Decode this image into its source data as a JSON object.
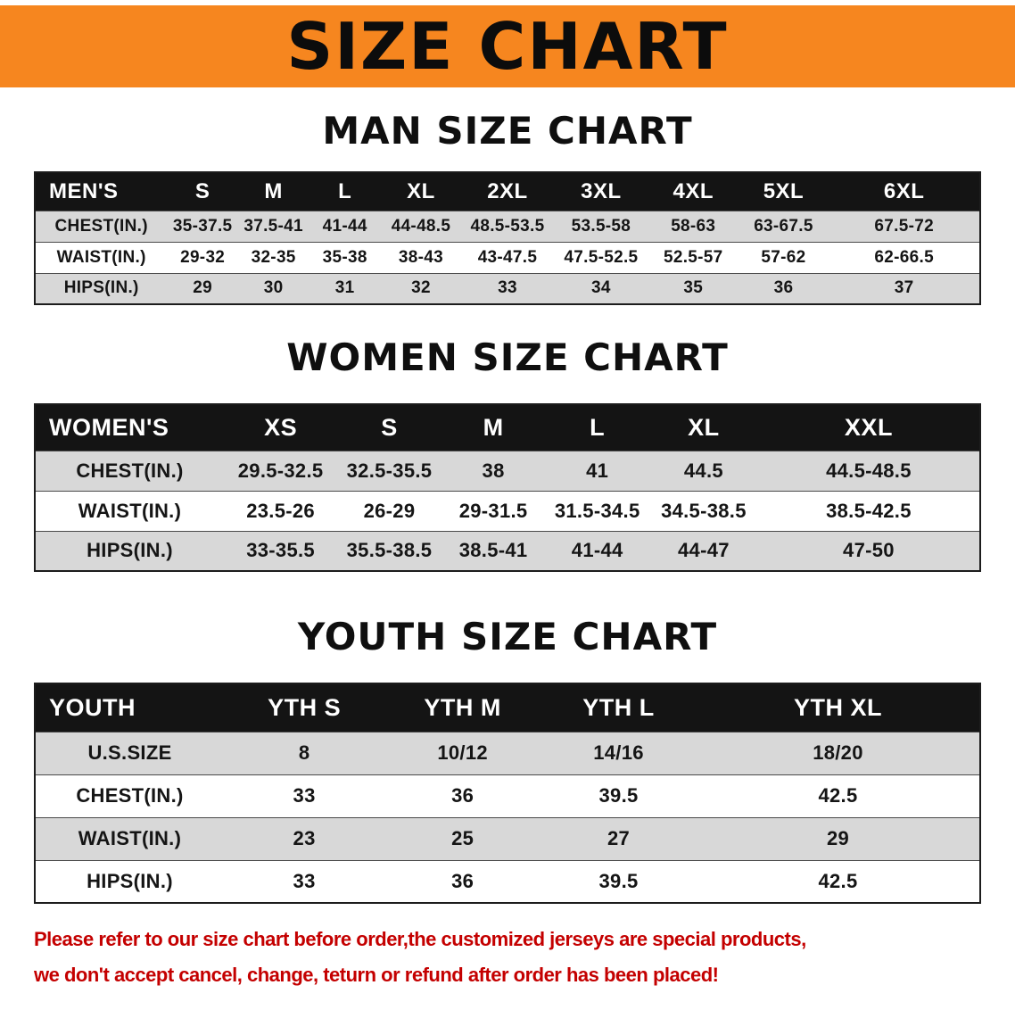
{
  "banner": {
    "title": "SIZE CHART"
  },
  "colors": {
    "banner_bg": "#F6861F",
    "header_row_bg": "#141414",
    "stripe_row_bg": "#D8D8D8",
    "disclaimer_red": "#C40000"
  },
  "sections": [
    {
      "id": "men",
      "heading": "MAN SIZE CHART",
      "table": {
        "header": [
          "MEN'S",
          "S",
          "M",
          "L",
          "XL",
          "2XL",
          "3XL",
          "4XL",
          "5XL",
          "6XL"
        ],
        "rows": [
          [
            "CHEST(IN.)",
            "35-37.5",
            "37.5-41",
            "41-44",
            "44-48.5",
            "48.5-53.5",
            "53.5-58",
            "58-63",
            "63-67.5",
            "67.5-72"
          ],
          [
            "WAIST(IN.)",
            "29-32",
            "32-35",
            "35-38",
            "38-43",
            "43-47.5",
            "47.5-52.5",
            "52.5-57",
            "57-62",
            "62-66.5"
          ],
          [
            "HIPS(IN.)",
            "29",
            "30",
            "31",
            "32",
            "33",
            "34",
            "35",
            "36",
            "37"
          ]
        ]
      }
    },
    {
      "id": "women",
      "heading": "WOMEN SIZE CHART",
      "table": {
        "header": [
          "WOMEN'S",
          "XS",
          "S",
          "M",
          "L",
          "XL",
          "XXL"
        ],
        "rows": [
          [
            "CHEST(IN.)",
            "29.5-32.5",
            "32.5-35.5",
            "38",
            "41",
            "44.5",
            "44.5-48.5"
          ],
          [
            "WAIST(IN.)",
            "23.5-26",
            "26-29",
            "29-31.5",
            "31.5-34.5",
            "34.5-38.5",
            "38.5-42.5"
          ],
          [
            "HIPS(IN.)",
            "33-35.5",
            "35.5-38.5",
            "38.5-41",
            "41-44",
            "44-47",
            "47-50"
          ]
        ]
      }
    },
    {
      "id": "youth",
      "heading": "YOUTH SIZE CHART",
      "table": {
        "header": [
          "YOUTH",
          "YTH S",
          "YTH M",
          "YTH L",
          "YTH XL"
        ],
        "rows": [
          [
            "U.S.SIZE",
            "8",
            "10/12",
            "14/16",
            "18/20"
          ],
          [
            "CHEST(IN.)",
            "33",
            "36",
            "39.5",
            "42.5"
          ],
          [
            "WAIST(IN.)",
            "23",
            "25",
            "27",
            "29"
          ],
          [
            "HIPS(IN.)",
            "33",
            "36",
            "39.5",
            "42.5"
          ]
        ]
      }
    }
  ],
  "disclaimer": {
    "line1": "Please refer to our size chart before order,the customized jerseys are special products,",
    "line2": "we don't accept cancel, change, teturn or refund after order has been placed!"
  }
}
